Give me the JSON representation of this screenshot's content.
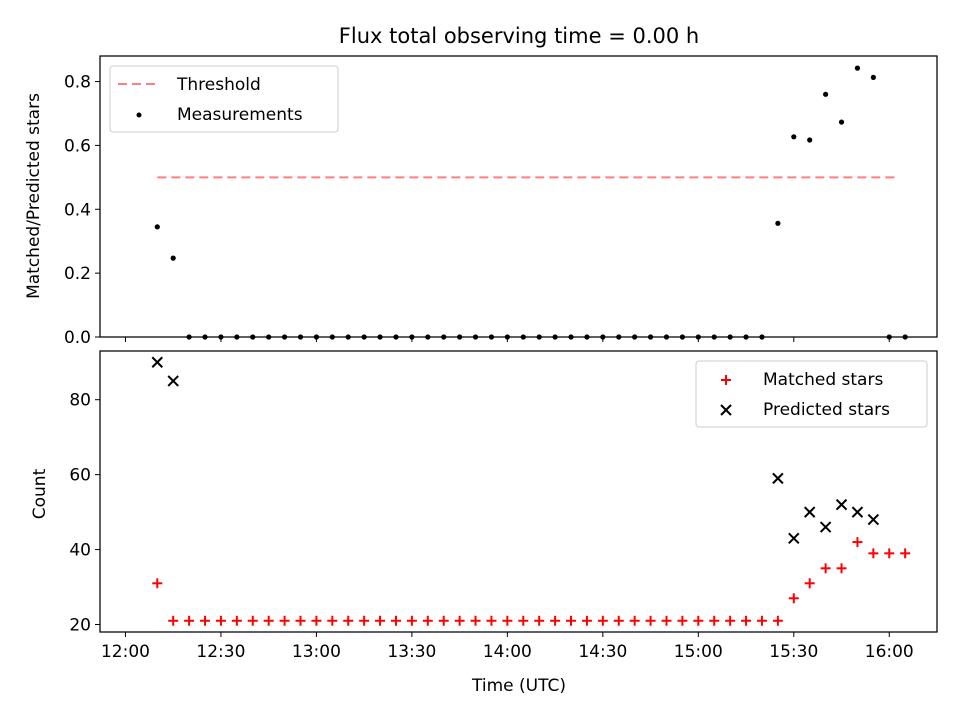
{
  "chart_data": [
    {
      "type": "scatter",
      "title": "Flux total observing time = 0.00 h",
      "xlabel": "",
      "ylabel": "Matched/Predicted stars",
      "ylim": [
        0,
        0.88
      ],
      "yticks": [
        "0.0",
        "0.2",
        "0.4",
        "0.6",
        "0.8"
      ],
      "legend_position": "top-left",
      "colors": {
        "threshold": "#ff7f7f",
        "measurements": "#000000"
      },
      "threshold": {
        "name": "Threshold",
        "value": 0.5,
        "x_start": "12:10",
        "x_end": "16:03",
        "style": "dashed"
      },
      "series": [
        {
          "name": "Measurements",
          "points": [
            [
              "12:10",
              0.345
            ],
            [
              "12:15",
              0.247
            ],
            [
              "12:20",
              0
            ],
            [
              "12:25",
              0
            ],
            [
              "12:30",
              0
            ],
            [
              "12:35",
              0
            ],
            [
              "12:40",
              0
            ],
            [
              "12:45",
              0
            ],
            [
              "12:50",
              0
            ],
            [
              "12:55",
              0
            ],
            [
              "13:00",
              0
            ],
            [
              "13:05",
              0
            ],
            [
              "13:10",
              0
            ],
            [
              "13:15",
              0
            ],
            [
              "13:20",
              0
            ],
            [
              "13:25",
              0
            ],
            [
              "13:30",
              0
            ],
            [
              "13:35",
              0
            ],
            [
              "13:40",
              0
            ],
            [
              "13:45",
              0
            ],
            [
              "13:50",
              0
            ],
            [
              "13:55",
              0
            ],
            [
              "14:00",
              0
            ],
            [
              "14:05",
              0
            ],
            [
              "14:10",
              0
            ],
            [
              "14:15",
              0
            ],
            [
              "14:20",
              0
            ],
            [
              "14:25",
              0
            ],
            [
              "14:30",
              0
            ],
            [
              "14:35",
              0
            ],
            [
              "14:40",
              0
            ],
            [
              "14:45",
              0
            ],
            [
              "14:50",
              0
            ],
            [
              "14:55",
              0
            ],
            [
              "15:00",
              0
            ],
            [
              "15:05",
              0
            ],
            [
              "15:10",
              0
            ],
            [
              "15:15",
              0
            ],
            [
              "15:20",
              0
            ],
            [
              "15:25",
              0.356
            ],
            [
              "15:30",
              0.627
            ],
            [
              "15:35",
              0.617
            ],
            [
              "15:40",
              0.76
            ],
            [
              "15:45",
              0.673
            ],
            [
              "15:50",
              0.842
            ],
            [
              "15:55",
              0.813
            ],
            [
              "16:00",
              0
            ],
            [
              "16:05",
              0
            ]
          ]
        }
      ]
    },
    {
      "type": "scatter",
      "title": "",
      "xlabel": "Time (UTC)",
      "ylabel": "Count",
      "xlim": [
        "11:52",
        "16:15"
      ],
      "ylim": [
        18,
        93
      ],
      "xticks": [
        "12:00",
        "12:30",
        "13:00",
        "13:30",
        "14:00",
        "14:30",
        "15:00",
        "15:30",
        "16:00"
      ],
      "yticks": [
        "20",
        "40",
        "60",
        "80"
      ],
      "legend_position": "top-right",
      "colors": {
        "matched": "#ff0000",
        "predicted": "#000000"
      },
      "series": [
        {
          "name": "Matched stars",
          "marker": "plus",
          "points": [
            [
              "12:10",
              31
            ],
            [
              "12:15",
              21
            ],
            [
              "12:20",
              21
            ],
            [
              "12:25",
              21
            ],
            [
              "12:30",
              21
            ],
            [
              "12:35",
              21
            ],
            [
              "12:40",
              21
            ],
            [
              "12:45",
              21
            ],
            [
              "12:50",
              21
            ],
            [
              "12:55",
              21
            ],
            [
              "13:00",
              21
            ],
            [
              "13:05",
              21
            ],
            [
              "13:10",
              21
            ],
            [
              "13:15",
              21
            ],
            [
              "13:20",
              21
            ],
            [
              "13:25",
              21
            ],
            [
              "13:30",
              21
            ],
            [
              "13:35",
              21
            ],
            [
              "13:40",
              21
            ],
            [
              "13:45",
              21
            ],
            [
              "13:50",
              21
            ],
            [
              "13:55",
              21
            ],
            [
              "14:00",
              21
            ],
            [
              "14:05",
              21
            ],
            [
              "14:10",
              21
            ],
            [
              "14:15",
              21
            ],
            [
              "14:20",
              21
            ],
            [
              "14:25",
              21
            ],
            [
              "14:30",
              21
            ],
            [
              "14:35",
              21
            ],
            [
              "14:40",
              21
            ],
            [
              "14:45",
              21
            ],
            [
              "14:50",
              21
            ],
            [
              "14:55",
              21
            ],
            [
              "15:00",
              21
            ],
            [
              "15:05",
              21
            ],
            [
              "15:10",
              21
            ],
            [
              "15:15",
              21
            ],
            [
              "15:20",
              21
            ],
            [
              "15:25",
              21
            ],
            [
              "15:30",
              27
            ],
            [
              "15:35",
              31
            ],
            [
              "15:40",
              35
            ],
            [
              "15:45",
              35
            ],
            [
              "15:50",
              42
            ],
            [
              "15:55",
              39
            ],
            [
              "16:00",
              39
            ],
            [
              "16:05",
              39
            ]
          ]
        },
        {
          "name": "Predicted stars",
          "marker": "x",
          "points": [
            [
              "12:10",
              90
            ],
            [
              "12:15",
              85
            ],
            [
              "15:25",
              59
            ],
            [
              "15:30",
              43
            ],
            [
              "15:35",
              50
            ],
            [
              "15:40",
              46
            ],
            [
              "15:45",
              52
            ],
            [
              "15:50",
              50
            ],
            [
              "15:55",
              48
            ]
          ]
        }
      ]
    }
  ]
}
